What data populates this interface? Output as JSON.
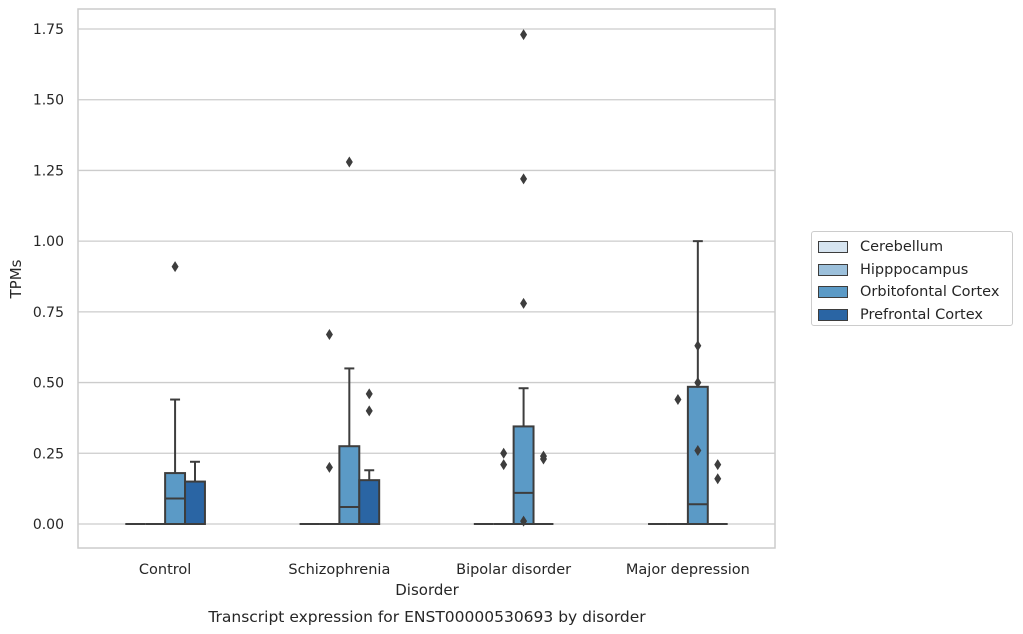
{
  "chart_data": {
    "type": "box",
    "xlabel": "Disorder",
    "ylabel": "TPMs",
    "caption": "Transcript expression for ENST00000530693 by disorder",
    "ylim": [
      -0.085,
      1.82
    ],
    "yticks": [
      "0.00",
      "0.25",
      "0.50",
      "0.75",
      "1.00",
      "1.25",
      "1.50",
      "1.75"
    ],
    "ytick_values": [
      0,
      0.25,
      0.5,
      0.75,
      1.0,
      1.25,
      1.5,
      1.75
    ],
    "grid": "horizontal",
    "legend_position": "right",
    "categories": [
      "Control",
      "Schizophrenia",
      "Bipolar disorder",
      "Major depression"
    ],
    "series": [
      {
        "name": "Cerebellum",
        "color": "#d6e4f0",
        "boxes": [
          {
            "q1": 0,
            "median": 0,
            "q3": 0,
            "whisker_low": 0,
            "whisker_high": 0,
            "outliers": []
          },
          {
            "q1": 0,
            "median": 0,
            "q3": 0,
            "whisker_low": 0,
            "whisker_high": 0,
            "outliers": []
          },
          {
            "q1": 0,
            "median": 0,
            "q3": 0,
            "whisker_low": 0,
            "whisker_high": 0,
            "outliers": []
          },
          {
            "q1": 0,
            "median": 0,
            "q3": 0,
            "whisker_low": 0,
            "whisker_high": 0,
            "outliers": []
          }
        ]
      },
      {
        "name": "Hipppocampus",
        "color": "#9cc0db",
        "boxes": [
          {
            "q1": 0,
            "median": 0,
            "q3": 0,
            "whisker_low": 0,
            "whisker_high": 0,
            "outliers": []
          },
          {
            "q1": 0,
            "median": 0,
            "q3": 0,
            "whisker_low": 0,
            "whisker_high": 0,
            "outliers": [
              0.2,
              0.67
            ]
          },
          {
            "q1": 0,
            "median": 0,
            "q3": 0,
            "whisker_low": 0,
            "whisker_high": 0,
            "outliers": [
              0.21,
              0.25
            ]
          },
          {
            "q1": 0,
            "median": 0,
            "q3": 0,
            "whisker_low": 0,
            "whisker_high": 0,
            "outliers": [
              0.44
            ]
          }
        ]
      },
      {
        "name": "Orbitofontal Cortex",
        "color": "#5b9ac6",
        "boxes": [
          {
            "q1": 0,
            "median": 0.09,
            "q3": 0.18,
            "whisker_low": 0,
            "whisker_high": 0.44,
            "outliers": [
              0.91
            ]
          },
          {
            "q1": 0,
            "median": 0.06,
            "q3": 0.275,
            "whisker_low": 0,
            "whisker_high": 0.55,
            "outliers": [
              1.28
            ]
          },
          {
            "q1": 0,
            "median": 0.11,
            "q3": 0.345,
            "whisker_low": 0,
            "whisker_high": 0.48,
            "outliers": [
              0.01,
              0.78,
              1.22,
              1.73
            ]
          },
          {
            "q1": 0,
            "median": 0.07,
            "q3": 0.485,
            "whisker_low": 0,
            "whisker_high": 1.0,
            "outliers": [
              0.26,
              0.5,
              0.63
            ]
          }
        ]
      },
      {
        "name": "Prefrontal Cortex",
        "color": "#2a65a4",
        "boxes": [
          {
            "q1": 0,
            "median": 0,
            "q3": 0.15,
            "whisker_low": 0,
            "whisker_high": 0.22,
            "outliers": []
          },
          {
            "q1": 0,
            "median": 0,
            "q3": 0.155,
            "whisker_low": 0,
            "whisker_high": 0.19,
            "outliers": [
              0.4,
              0.46
            ]
          },
          {
            "q1": 0,
            "median": 0,
            "q3": 0,
            "whisker_low": 0,
            "whisker_high": 0,
            "outliers": [
              0.23,
              0.24
            ]
          },
          {
            "q1": 0,
            "median": 0,
            "q3": 0,
            "whisker_low": 0,
            "whisker_high": 0,
            "outliers": [
              0.16,
              0.21
            ]
          }
        ]
      }
    ]
  }
}
